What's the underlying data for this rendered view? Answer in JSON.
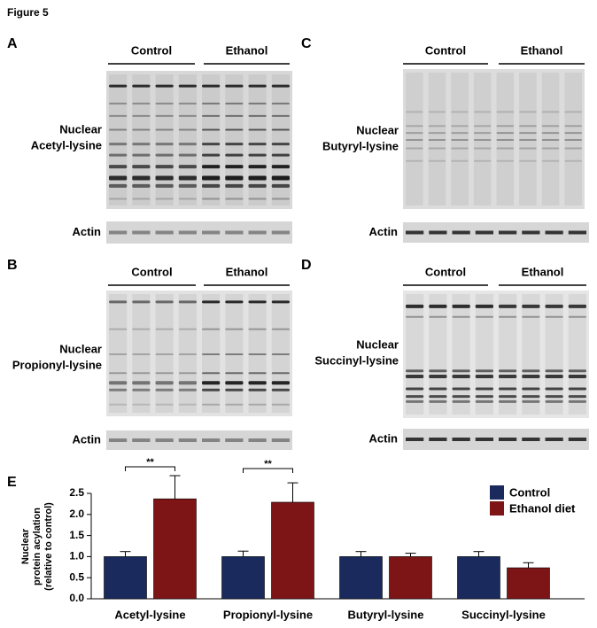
{
  "figure": {
    "title": "Figure 5"
  },
  "panels": [
    {
      "letter": "A",
      "groups": [
        "Control",
        "Ethanol"
      ],
      "blot_label": [
        "Nuclear",
        "Acetyl-lysine"
      ],
      "loading_label": "Actin"
    },
    {
      "letter": "B",
      "groups": [
        "Control",
        "Ethanol"
      ],
      "blot_label": [
        "Nuclear",
        "Propionyl-lysine"
      ],
      "loading_label": "Actin"
    },
    {
      "letter": "C",
      "groups": [
        "Control",
        "Ethanol"
      ],
      "blot_label": [
        "Nuclear",
        "Butyryl-lysine"
      ],
      "loading_label": "Actin"
    },
    {
      "letter": "D",
      "groups": [
        "Control",
        "Ethanol"
      ],
      "blot_label": [
        "Nuclear",
        "Succinyl-lysine"
      ],
      "loading_label": "Actin"
    }
  ],
  "chart_data": {
    "type": "bar",
    "letter": "E",
    "y_label": [
      "Nuclear",
      "protein acylation",
      "(relative to control)"
    ],
    "categories": [
      "Acetyl-lysine",
      "Propionyl-lysine",
      "Butyryl-lysine",
      "Succinyl-lysine"
    ],
    "series": [
      {
        "name": "Control",
        "color": "#1b2a5c",
        "values": [
          1.0,
          1.0,
          1.0,
          1.0
        ],
        "errors": [
          0.12,
          0.13,
          0.12,
          0.12
        ]
      },
      {
        "name": "Ethanol diet",
        "color": "#7d1517",
        "values": [
          2.37,
          2.29,
          1.0,
          0.735
        ],
        "errors": [
          0.55,
          0.46,
          0.08,
          0.12
        ]
      }
    ],
    "significance": [
      "**",
      "**",
      null,
      null
    ],
    "ylim": [
      0,
      2.5
    ],
    "yticks": [
      {
        "value": 0,
        "label": "0.0"
      },
      0.5,
      {
        "value": 1,
        "label": "1.0"
      },
      1.5,
      {
        "value": 2,
        "label": "2.0"
      },
      2.5
    ],
    "legend": "upper right"
  }
}
